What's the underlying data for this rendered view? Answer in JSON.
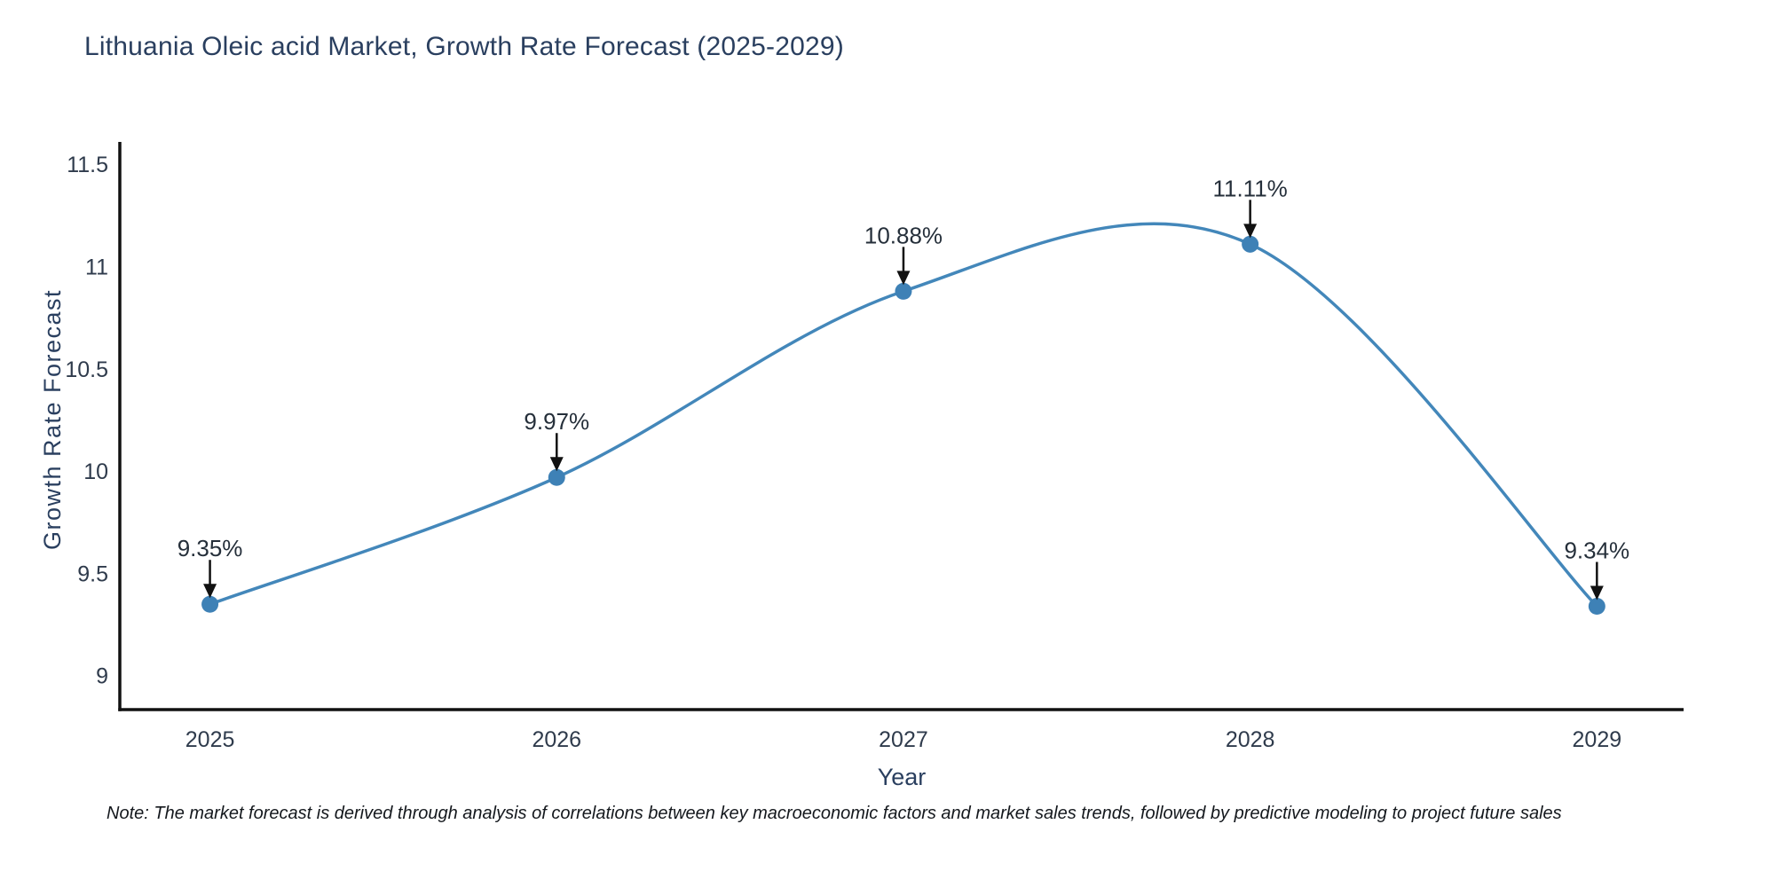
{
  "title": "Lithuania Oleic acid Market, Growth Rate Forecast (2025-2029)",
  "note": "Note: The market forecast is derived through analysis of correlations between key macroeconomic factors and market sales trends, followed by predictive modeling to project future sales",
  "chart_data": {
    "type": "line",
    "line_shape": "spline",
    "title": "Lithuania Oleic acid Market, Growth Rate Forecast (2025-2029)",
    "x": [
      2025,
      2026,
      2027,
      2028,
      2029
    ],
    "values": [
      9.35,
      9.97,
      10.88,
      11.11,
      9.34
    ],
    "point_labels": [
      "9.35%",
      "9.97%",
      "10.88%",
      "11.11%",
      "9.34%"
    ],
    "xlabel": "Year",
    "ylabel": "Growth Rate Forecast",
    "x_tick_labels": [
      "2025",
      "2026",
      "2027",
      "2028",
      "2029"
    ],
    "y_ticks": [
      9,
      9.5,
      10,
      10.5,
      11,
      11.5
    ],
    "y_tick_labels": [
      "9",
      "9.5",
      "10",
      "10.5",
      "11",
      "11.5"
    ],
    "xlim": [
      2024.74,
      2029.25
    ],
    "ylim": [
      8.835,
      11.61
    ],
    "grid": false,
    "legend": false,
    "colors": {
      "line": "#4387ba",
      "marker": "#3e81b6",
      "axis": "#111111",
      "tick_text": "#2f3b4c",
      "title_text": "#2a3f5f",
      "annotation_text": "#252f3a",
      "arrow": "#111111",
      "background": "#ffffff"
    }
  }
}
